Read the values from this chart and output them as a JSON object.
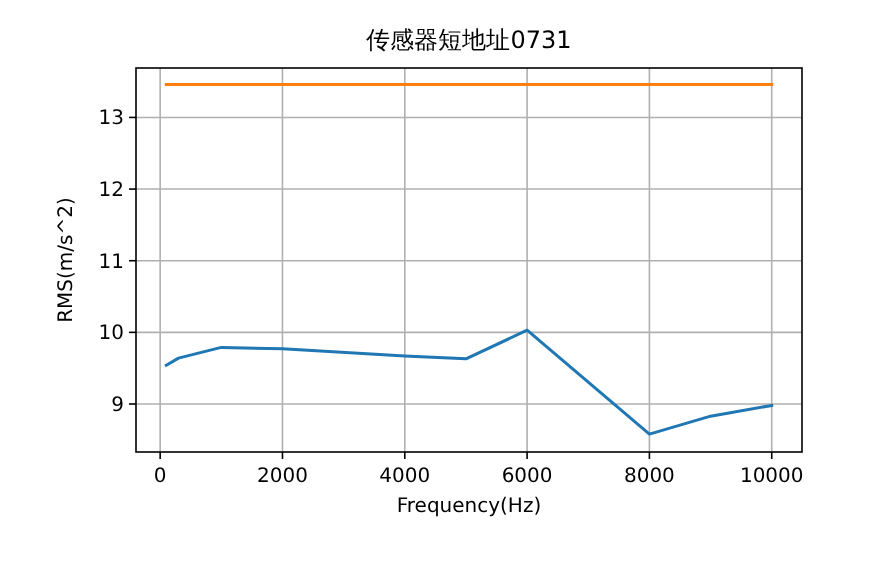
{
  "chart_data": {
    "type": "line",
    "title": "传感器短地址0731",
    "xlabel": "Frequency(Hz)",
    "ylabel": "RMS(m/s^2)",
    "series": [
      {
        "color": "#1f77b4",
        "x": [
          100,
          300,
          1000,
          2000,
          4000,
          5000,
          6000,
          8000,
          9000,
          10000
        ],
        "values": [
          9.54,
          9.64,
          9.79,
          9.77,
          9.67,
          9.63,
          10.03,
          8.58,
          8.83,
          8.98
        ]
      },
      {
        "color": "#ff7f0e",
        "x": [
          100,
          300,
          1000,
          2000,
          4000,
          5000,
          6000,
          8000,
          9000,
          10000
        ],
        "values": [
          13.46,
          13.46,
          13.46,
          13.46,
          13.46,
          13.46,
          13.46,
          13.46,
          13.46,
          13.46
        ]
      }
    ],
    "xlim": [
      -395,
      10495
    ],
    "ylim": [
      8.33,
      13.69
    ],
    "xticks": [
      0,
      2000,
      4000,
      6000,
      8000,
      10000
    ],
    "yticks": [
      9,
      10,
      11,
      12,
      13
    ],
    "grid": true,
    "line_style": "solid",
    "marker": "none"
  }
}
